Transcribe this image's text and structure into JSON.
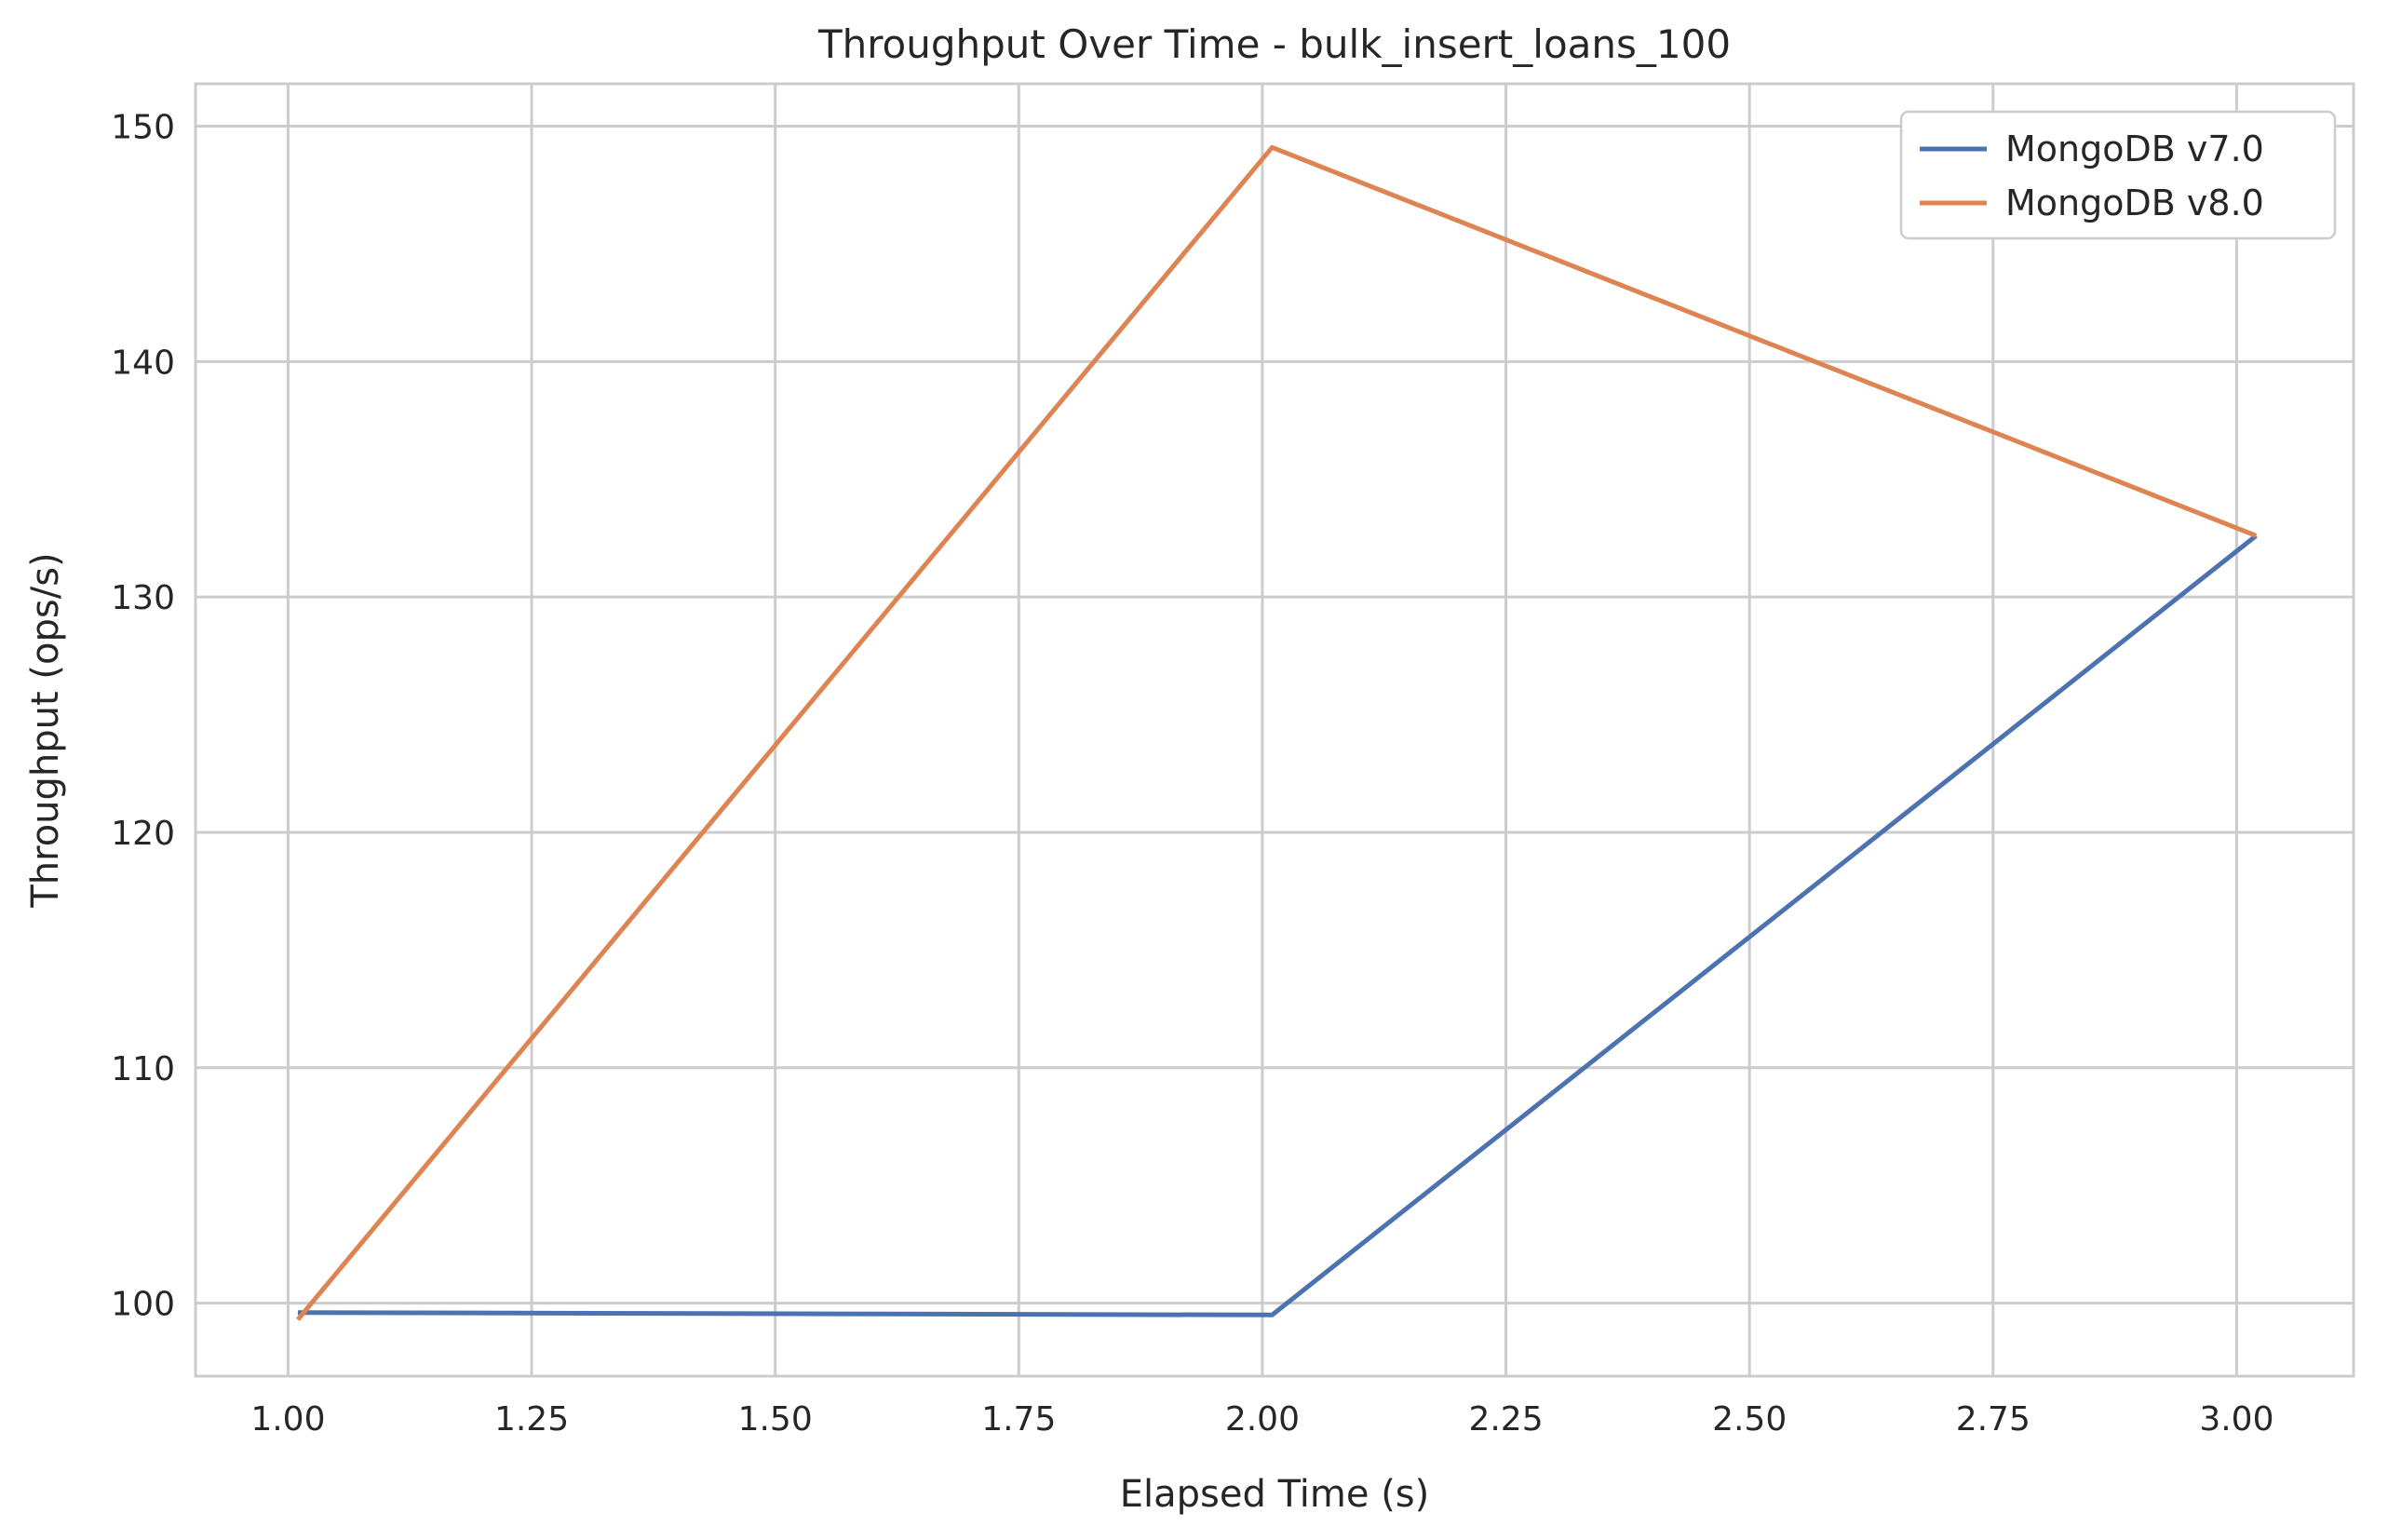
{
  "chart_data": {
    "type": "line",
    "title": "Throughput Over Time - bulk_insert_loans_100",
    "xlabel": "Elapsed Time (s)",
    "ylabel": "Throughput (ops/s)",
    "xlim": [
      0.905,
      3.12
    ],
    "ylim": [
      96.9,
      151.8
    ],
    "xticks": [
      1.0,
      1.25,
      1.5,
      1.75,
      2.0,
      2.25,
      2.5,
      2.75,
      3.0
    ],
    "xtick_labels": [
      "1.00",
      "1.25",
      "1.50",
      "1.75",
      "2.00",
      "2.25",
      "2.50",
      "2.75",
      "3.00"
    ],
    "yticks": [
      100,
      110,
      120,
      130,
      140,
      150
    ],
    "ytick_labels": [
      "100",
      "110",
      "120",
      "130",
      "140",
      "150"
    ],
    "grid": true,
    "legend_position": "top-right",
    "series": [
      {
        "name": "MongoDB v7.0",
        "color": "#4c72b0",
        "x": [
          1.01,
          2.01,
          3.02
        ],
        "y": [
          99.6,
          99.5,
          132.6
        ]
      },
      {
        "name": "MongoDB v8.0",
        "color": "#dd8452",
        "x": [
          1.01,
          2.01,
          3.02
        ],
        "y": [
          99.3,
          149.1,
          132.6
        ]
      }
    ]
  }
}
